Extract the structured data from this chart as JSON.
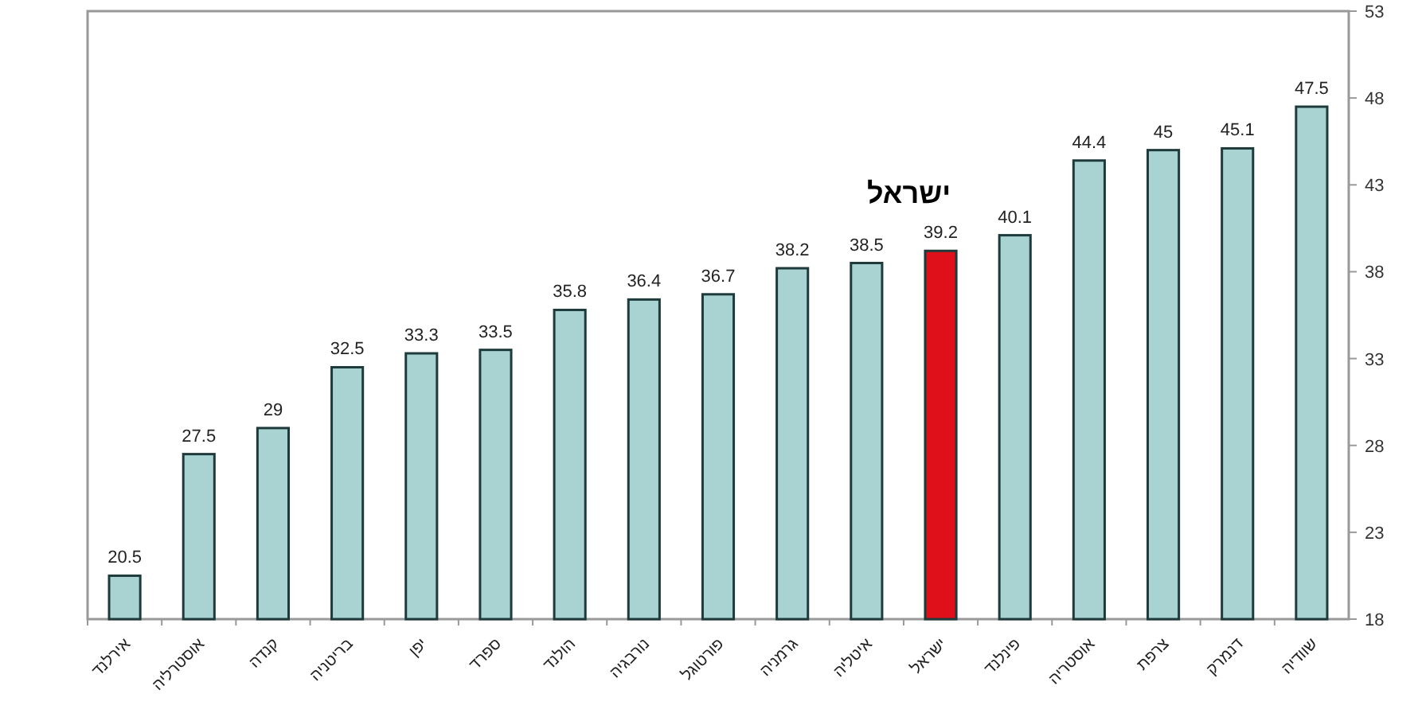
{
  "chart_data": {
    "type": "bar",
    "categories": [
      "אירלנד",
      "אוסטרליה",
      "קנדה",
      "בריטניה",
      "יפן",
      "ספרד",
      "הולנד",
      "נורבגיה",
      "פורטוגל",
      "גרמניה",
      "איטליה",
      "ישראל",
      "פינלנד",
      "אוסטריה",
      "צרפת",
      "דנמרק",
      "שוודיה"
    ],
    "values": [
      20.5,
      27.5,
      29,
      32.5,
      33.3,
      33.5,
      35.8,
      36.4,
      36.7,
      38.2,
      38.5,
      39.2,
      40.1,
      44.4,
      45,
      45.1,
      47.5
    ],
    "colors": [
      "#a9d3d3",
      "#a9d3d3",
      "#a9d3d3",
      "#a9d3d3",
      "#a9d3d3",
      "#a9d3d3",
      "#a9d3d3",
      "#a9d3d3",
      "#a9d3d3",
      "#a9d3d3",
      "#a9d3d3",
      "#e0101a",
      "#a9d3d3",
      "#a9d3d3",
      "#a9d3d3",
      "#a9d3d3",
      "#a9d3d3"
    ],
    "ylim": [
      18,
      53
    ],
    "yticks": [
      18,
      23,
      28,
      33,
      38,
      43,
      48,
      53
    ],
    "data_labels": true,
    "grid": false,
    "annotations": [
      "ישראל"
    ]
  }
}
